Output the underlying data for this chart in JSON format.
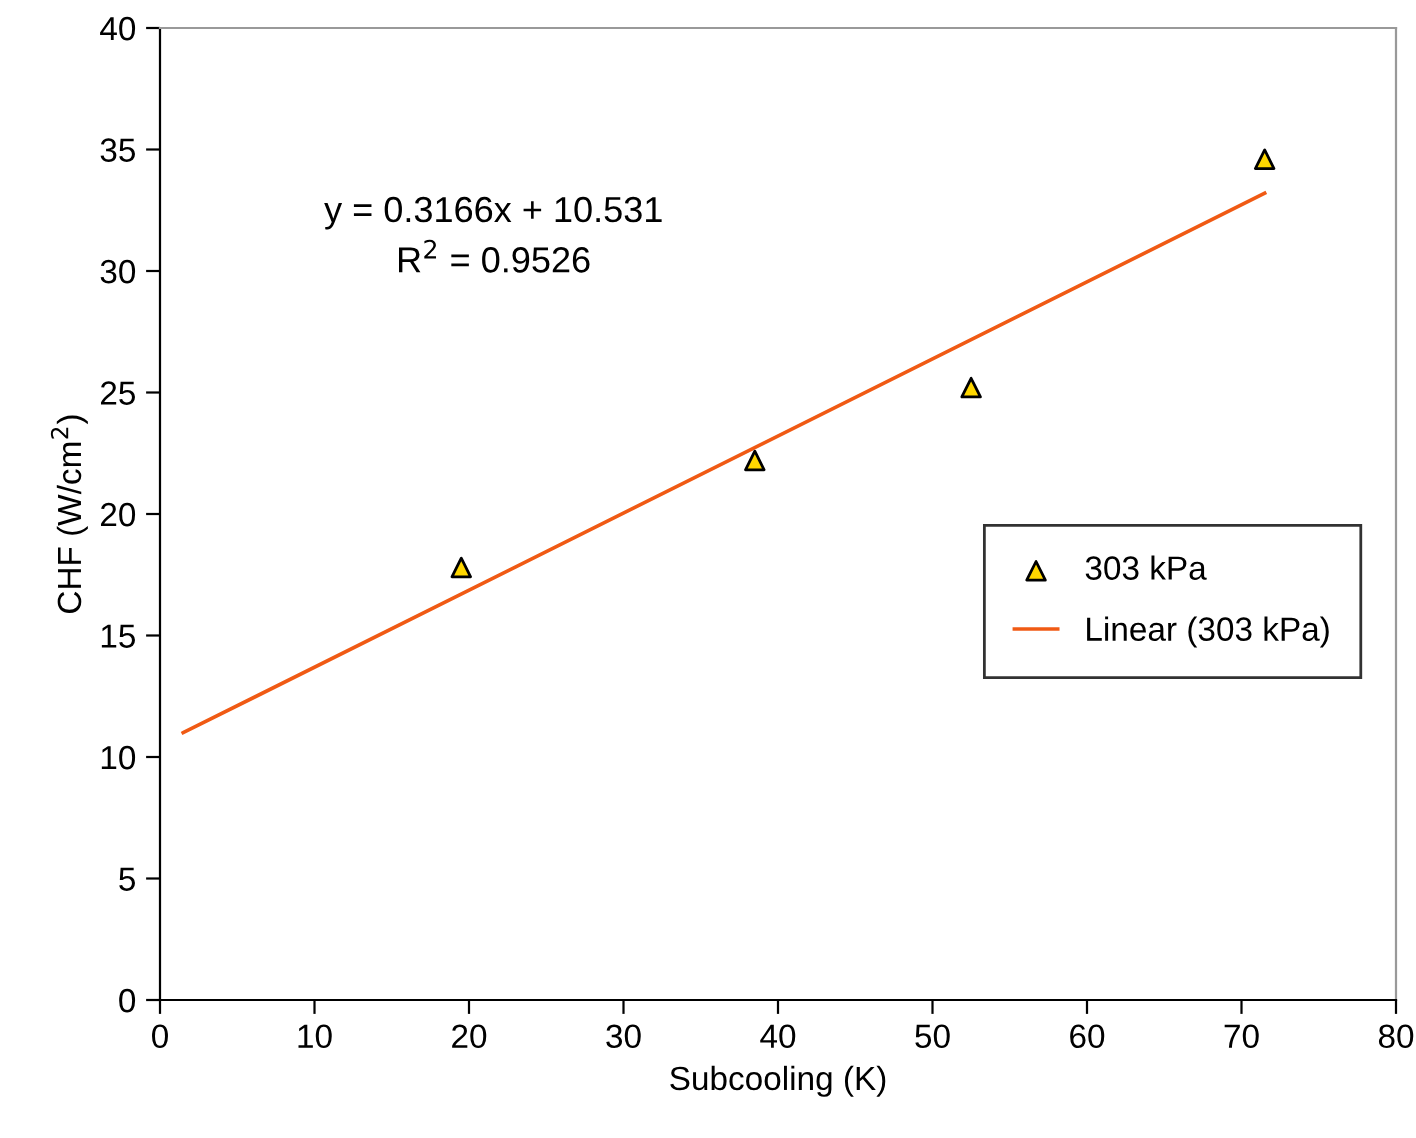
{
  "chart_data": {
    "type": "scatter",
    "xlabel": "Subcooling (K)",
    "ylabel": "CHF (W/cm$^{2}$)",
    "series": [
      {
        "name": "303 kPa",
        "color": "#ffd700",
        "marker": "triangle",
        "x": [
          19.5,
          38.5,
          52.5,
          71.5
        ],
        "values": [
          17.8,
          22.2,
          25.2,
          34.6
        ]
      },
      {
        "name": "Linear (303 kPa)",
        "type": "line",
        "color": "#f05a14",
        "marker": "none",
        "line_style": "solid",
        "x": [
          1.5,
          71.5
        ],
        "values": [
          11.0,
          33.2
        ]
      }
    ],
    "annotations": [
      "y = 0.3166x + 10.531",
      "R$^{2}$ = 0.9526"
    ],
    "xlim": [
      0,
      80
    ],
    "ylim": [
      0,
      40
    ],
    "xticks": [
      0,
      10,
      20,
      30,
      40,
      50,
      60,
      70,
      80
    ],
    "yticks": [
      0,
      5,
      10,
      15,
      20,
      25,
      30,
      35,
      40
    ],
    "grid": false,
    "legend": "right"
  }
}
